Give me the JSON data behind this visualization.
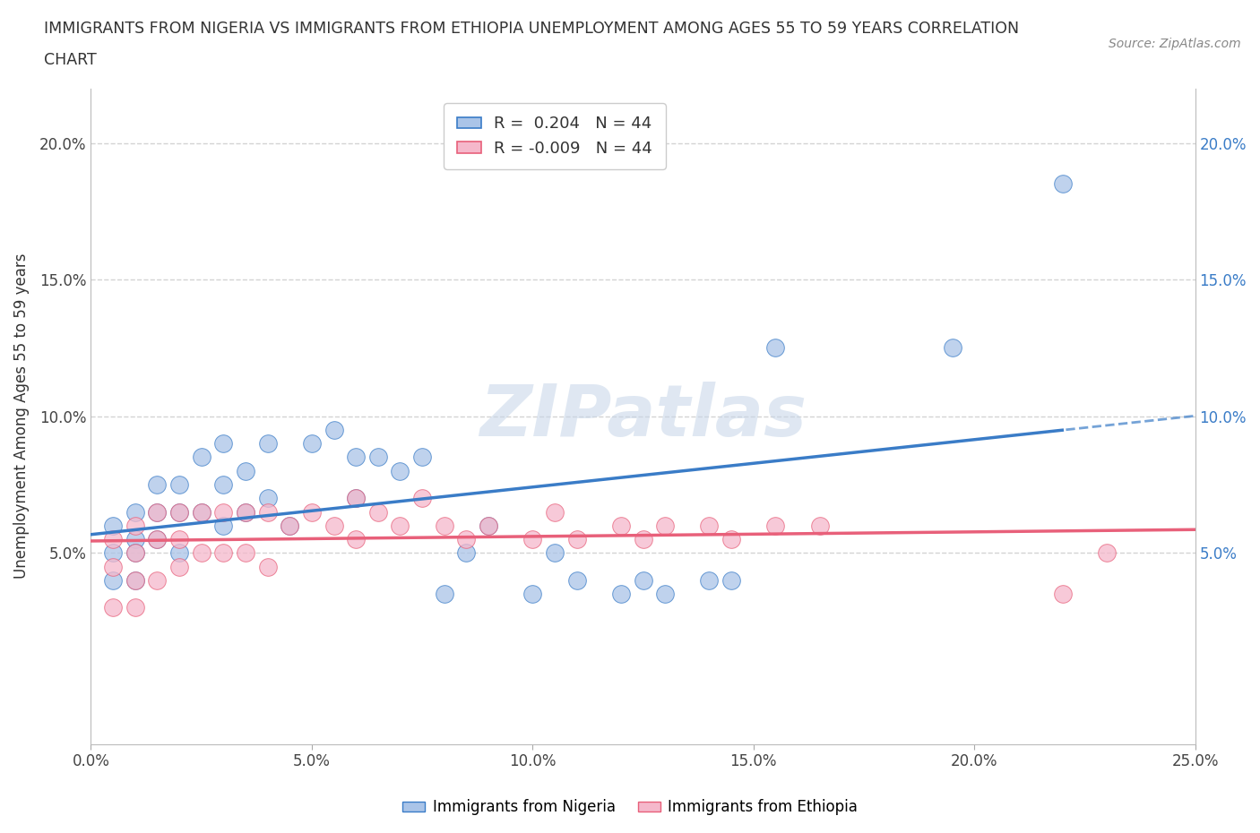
{
  "title_line1": "IMMIGRANTS FROM NIGERIA VS IMMIGRANTS FROM ETHIOPIA UNEMPLOYMENT AMONG AGES 55 TO 59 YEARS CORRELATION",
  "title_line2": "CHART",
  "source": "Source: ZipAtlas.com",
  "ylabel": "Unemployment Among Ages 55 to 59 years",
  "xlim": [
    0.0,
    0.25
  ],
  "ylim": [
    -0.02,
    0.22
  ],
  "xticks": [
    0.0,
    0.05,
    0.1,
    0.15,
    0.2,
    0.25
  ],
  "yticks": [
    0.05,
    0.1,
    0.15,
    0.2
  ],
  "ytick_labels": [
    "5.0%",
    "10.0%",
    "15.0%",
    "20.0%"
  ],
  "xtick_labels": [
    "0.0%",
    "5.0%",
    "10.0%",
    "15.0%",
    "20.0%",
    "25.0%"
  ],
  "r_nigeria": 0.204,
  "n_nigeria": 44,
  "r_ethiopia": -0.009,
  "n_ethiopia": 44,
  "color_nigeria": "#aac4e8",
  "color_ethiopia": "#f5b8cb",
  "line_color_nigeria": "#3a7cc7",
  "line_color_ethiopia": "#e8607a",
  "watermark": "ZIPatlas",
  "background_color": "#ffffff",
  "grid_color": "#c8c8c8",
  "nigeria_x": [
    0.005,
    0.005,
    0.005,
    0.01,
    0.01,
    0.01,
    0.01,
    0.015,
    0.015,
    0.015,
    0.02,
    0.02,
    0.02,
    0.025,
    0.025,
    0.03,
    0.03,
    0.03,
    0.035,
    0.035,
    0.04,
    0.04,
    0.045,
    0.05,
    0.055,
    0.06,
    0.06,
    0.065,
    0.07,
    0.075,
    0.08,
    0.085,
    0.09,
    0.1,
    0.105,
    0.11,
    0.12,
    0.125,
    0.13,
    0.14,
    0.145,
    0.155,
    0.195,
    0.22
  ],
  "nigeria_y": [
    0.06,
    0.05,
    0.04,
    0.065,
    0.055,
    0.05,
    0.04,
    0.075,
    0.065,
    0.055,
    0.075,
    0.065,
    0.05,
    0.085,
    0.065,
    0.09,
    0.075,
    0.06,
    0.08,
    0.065,
    0.09,
    0.07,
    0.06,
    0.09,
    0.095,
    0.085,
    0.07,
    0.085,
    0.08,
    0.085,
    0.035,
    0.05,
    0.06,
    0.035,
    0.05,
    0.04,
    0.035,
    0.04,
    0.035,
    0.04,
    0.04,
    0.125,
    0.125,
    0.185
  ],
  "ethiopia_x": [
    0.005,
    0.005,
    0.005,
    0.01,
    0.01,
    0.01,
    0.01,
    0.015,
    0.015,
    0.015,
    0.02,
    0.02,
    0.02,
    0.025,
    0.025,
    0.03,
    0.03,
    0.035,
    0.035,
    0.04,
    0.04,
    0.045,
    0.05,
    0.055,
    0.06,
    0.06,
    0.065,
    0.07,
    0.075,
    0.08,
    0.085,
    0.09,
    0.1,
    0.105,
    0.11,
    0.12,
    0.125,
    0.13,
    0.14,
    0.145,
    0.155,
    0.165,
    0.22,
    0.23
  ],
  "ethiopia_y": [
    0.055,
    0.045,
    0.03,
    0.06,
    0.05,
    0.04,
    0.03,
    0.065,
    0.055,
    0.04,
    0.065,
    0.055,
    0.045,
    0.065,
    0.05,
    0.065,
    0.05,
    0.065,
    0.05,
    0.065,
    0.045,
    0.06,
    0.065,
    0.06,
    0.07,
    0.055,
    0.065,
    0.06,
    0.07,
    0.06,
    0.055,
    0.06,
    0.055,
    0.065,
    0.055,
    0.06,
    0.055,
    0.06,
    0.06,
    0.055,
    0.06,
    0.06,
    0.035,
    0.05
  ]
}
